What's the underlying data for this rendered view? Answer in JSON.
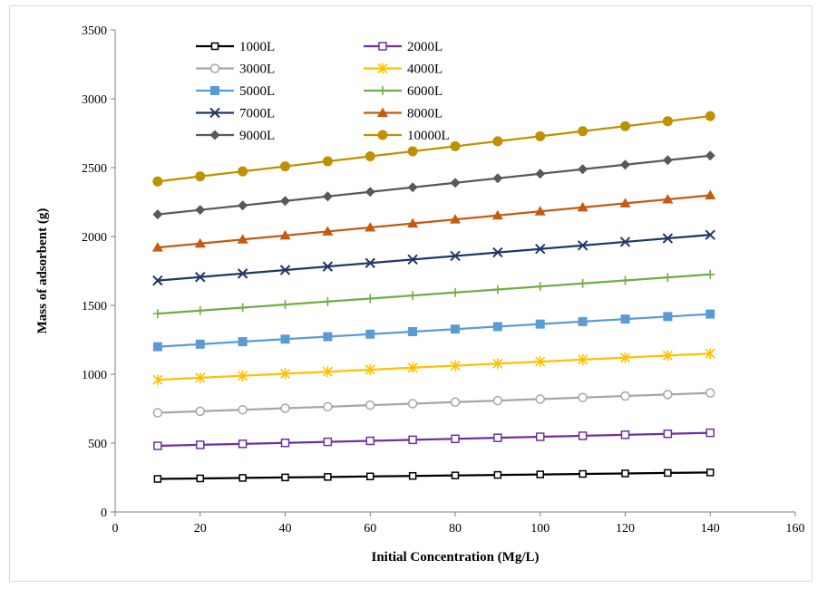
{
  "chart_data": {
    "type": "line",
    "xlabel": "Initial Concentration (Mg/L)",
    "ylabel": "Mass of adsorbent (g)",
    "xlim": [
      0,
      160
    ],
    "ylim": [
      0,
      3500
    ],
    "xticks": [
      0,
      20,
      40,
      60,
      80,
      100,
      120,
      140,
      160
    ],
    "yticks": [
      0,
      500,
      1000,
      1500,
      2000,
      2500,
      3000,
      3500
    ],
    "grid": false,
    "legend_position": "top-left",
    "x": [
      10,
      20,
      30,
      40,
      50,
      60,
      70,
      80,
      90,
      100,
      110,
      120,
      130,
      140
    ],
    "series": [
      {
        "name": "1000L",
        "color": "#000000",
        "marker": "square-open-small",
        "start": 240,
        "end": 287
      },
      {
        "name": "2000L",
        "color": "#7030a0",
        "marker": "square-open",
        "start": 480,
        "end": 575
      },
      {
        "name": "3000L",
        "color": "#a6a6a6",
        "marker": "circle-open",
        "start": 720,
        "end": 864
      },
      {
        "name": "4000L",
        "color": "#ffc000",
        "marker": "asterisk",
        "start": 960,
        "end": 1150
      },
      {
        "name": "5000L",
        "color": "#5b9bd5",
        "marker": "square",
        "start": 1200,
        "end": 1437
      },
      {
        "name": "6000L",
        "color": "#70ad47",
        "marker": "plus",
        "start": 1440,
        "end": 1725
      },
      {
        "name": "7000L",
        "color": "#203864",
        "marker": "x",
        "start": 1680,
        "end": 2012
      },
      {
        "name": "8000L",
        "color": "#c55a11",
        "marker": "triangle",
        "start": 1920,
        "end": 2299
      },
      {
        "name": "9000L",
        "color": "#595959",
        "marker": "diamond",
        "start": 2160,
        "end": 2587
      },
      {
        "name": "10000L",
        "color": "#bf9000",
        "marker": "circle",
        "start": 2400,
        "end": 2874
      }
    ]
  }
}
